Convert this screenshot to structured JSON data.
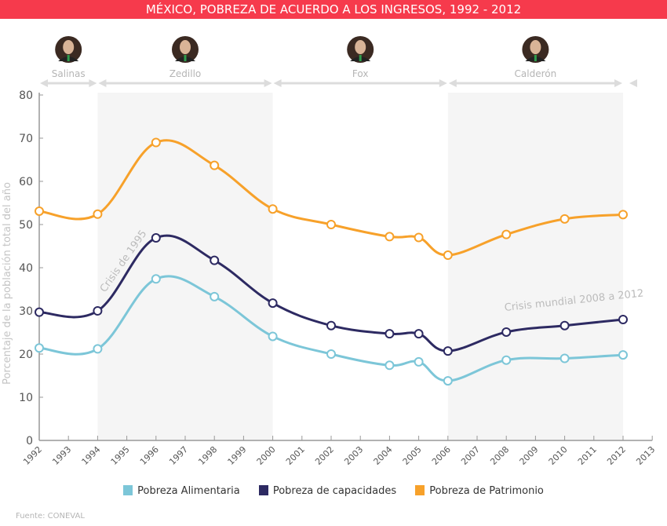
{
  "title": "MÉXICO, POBREZA DE ACUERDO A LOS INGRESOS, 1992 - 2012",
  "source": "Fuente: CONEVAL",
  "colors": {
    "title_bg": "#f63a4c",
    "alimentaria": "#7cc6d8",
    "capacidades": "#2d2a62",
    "patrimonio": "#f7a12a",
    "shade": "#f5f5f5",
    "annotation": "#bbbbbb"
  },
  "presidents": [
    {
      "name": "Salinas",
      "icon": "portrait-salinas-icon",
      "from": 1992,
      "to": 1994
    },
    {
      "name": "Zedillo",
      "icon": "portrait-zedillo-icon",
      "from": 1994,
      "to": 2000
    },
    {
      "name": "Fox",
      "icon": "portrait-fox-icon",
      "from": 2000,
      "to": 2006
    },
    {
      "name": "Calderón",
      "icon": "portrait-calderon-icon",
      "from": 2006,
      "to": 2012
    }
  ],
  "chart_data": {
    "type": "line",
    "title": "MÉXICO, POBREZA DE ACUERDO A LOS INGRESOS, 1992 - 2012",
    "xlabel": "",
    "ylabel": "Porcentaje de la población total del año",
    "xlim": [
      1992,
      2013
    ],
    "ylim": [
      0,
      80
    ],
    "yticks": [
      0,
      10,
      20,
      30,
      40,
      50,
      60,
      70,
      80
    ],
    "xticks": [
      1992,
      1993,
      1994,
      1995,
      1996,
      1997,
      1998,
      1999,
      2000,
      2001,
      2002,
      2003,
      2004,
      2005,
      2006,
      2007,
      2008,
      2009,
      2010,
      2011,
      2012,
      2013
    ],
    "x": [
      1992,
      1994,
      1996,
      1998,
      2000,
      2002,
      2004,
      2005,
      2006,
      2008,
      2010,
      2012
    ],
    "series": [
      {
        "name": "Pobreza Alimentaria",
        "color": "#7cc6d8",
        "values": [
          21.4,
          21.2,
          37.4,
          33.3,
          24.1,
          20.0,
          17.4,
          18.2,
          13.8,
          18.6,
          19.0,
          19.8
        ]
      },
      {
        "name": "Pobreza de capacidades",
        "color": "#2d2a62",
        "values": [
          29.7,
          30.0,
          46.9,
          41.7,
          31.8,
          26.6,
          24.7,
          24.7,
          20.7,
          25.1,
          26.6,
          28.0
        ]
      },
      {
        "name": "Pobreza de Patrimonio",
        "color": "#f7a12a",
        "values": [
          53.1,
          52.4,
          69.0,
          63.7,
          53.6,
          50.0,
          47.2,
          47.0,
          42.9,
          47.7,
          51.3,
          52.3
        ]
      }
    ],
    "shaded_periods": [
      [
        1994,
        2000
      ],
      [
        2006,
        2012
      ]
    ],
    "annotations": [
      {
        "text": "Crisis de 1995",
        "x": 1994.2,
        "y": 36
      },
      {
        "text": "Crisis mundial 2008 a 2012",
        "x": 2008,
        "y": 28
      }
    ],
    "legend": "bottom",
    "grid": false
  }
}
